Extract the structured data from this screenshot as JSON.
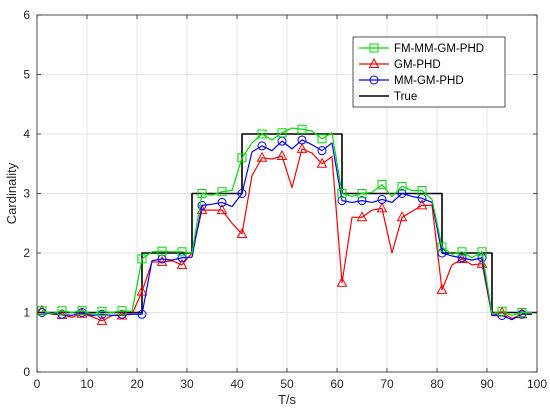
{
  "chart_data": {
    "type": "line",
    "xlabel": "T/s",
    "ylabel": "Cardinality",
    "xlim": [
      0,
      100
    ],
    "ylim": [
      0,
      6
    ],
    "xticks": [
      0,
      10,
      20,
      30,
      40,
      50,
      60,
      70,
      80,
      90,
      100
    ],
    "yticks": [
      0,
      1,
      2,
      3,
      4,
      5,
      6
    ],
    "grid": true,
    "legend_position": "top-right",
    "series": [
      {
        "name": "FM-MM-GM-PHD",
        "color": "#00dd00",
        "marker": "square",
        "x": [
          1,
          3,
          5,
          7,
          9,
          11,
          13,
          15,
          17,
          19,
          21,
          23,
          25,
          27,
          29,
          31,
          33,
          35,
          37,
          39,
          41,
          43,
          45,
          47,
          49,
          51,
          53,
          55,
          57,
          59,
          61,
          63,
          65,
          67,
          69,
          71,
          73,
          75,
          77,
          79,
          81,
          83,
          85,
          87,
          89,
          91,
          93,
          95,
          97,
          99
        ],
        "y": [
          1.03,
          0.98,
          1.03,
          1.0,
          1.03,
          0.97,
          1.02,
          1.0,
          1.03,
          1.02,
          1.9,
          2.02,
          2.03,
          2.02,
          2.02,
          2.0,
          3.0,
          2.97,
          3.03,
          3.05,
          3.6,
          3.85,
          4.0,
          3.9,
          4.02,
          4.1,
          4.08,
          4.05,
          3.92,
          4.02,
          3.0,
          2.95,
          3.0,
          3.02,
          3.15,
          2.95,
          3.12,
          3.05,
          3.05,
          2.9,
          2.1,
          1.98,
          2.02,
          1.92,
          2.02,
          0.98,
          1.02,
          0.95,
          1.0,
          1.0
        ]
      },
      {
        "name": "GM-PHD",
        "color": "#ff0000",
        "marker": "triangle",
        "x": [
          1,
          3,
          5,
          7,
          9,
          11,
          13,
          15,
          17,
          19,
          21,
          23,
          25,
          27,
          29,
          31,
          33,
          35,
          37,
          39,
          41,
          43,
          45,
          47,
          49,
          51,
          53,
          55,
          57,
          59,
          61,
          63,
          65,
          67,
          69,
          71,
          73,
          75,
          77,
          79,
          81,
          83,
          85,
          87,
          89,
          91,
          93,
          95,
          97,
          99
        ],
        "y": [
          1.03,
          0.97,
          0.96,
          0.92,
          0.98,
          0.93,
          0.86,
          0.95,
          0.95,
          0.97,
          1.35,
          1.85,
          1.85,
          1.87,
          1.8,
          2.0,
          2.72,
          2.72,
          2.72,
          2.5,
          2.32,
          3.3,
          3.6,
          3.58,
          3.63,
          3.1,
          3.75,
          3.68,
          3.5,
          3.62,
          1.5,
          2.6,
          2.6,
          2.72,
          2.75,
          2.0,
          2.6,
          2.7,
          2.8,
          2.8,
          1.38,
          1.8,
          1.9,
          1.8,
          1.82,
          0.95,
          1.0,
          0.9,
          0.97,
          0.97
        ]
      },
      {
        "name": "MM-GM-PHD",
        "color": "#0000ff",
        "marker": "circle",
        "x": [
          1,
          3,
          5,
          7,
          9,
          11,
          13,
          15,
          17,
          19,
          21,
          23,
          25,
          27,
          29,
          31,
          33,
          35,
          37,
          39,
          41,
          43,
          45,
          47,
          49,
          51,
          53,
          55,
          57,
          59,
          61,
          63,
          65,
          67,
          69,
          71,
          73,
          75,
          77,
          79,
          81,
          83,
          85,
          87,
          89,
          91,
          93,
          95,
          97,
          99
        ],
        "y": [
          1.0,
          0.98,
          0.97,
          0.95,
          1.0,
          0.95,
          0.97,
          0.95,
          0.97,
          0.97,
          0.97,
          1.87,
          1.9,
          1.88,
          1.92,
          1.93,
          2.8,
          2.82,
          2.85,
          2.78,
          3.0,
          3.7,
          3.8,
          3.72,
          3.88,
          3.75,
          3.9,
          3.82,
          3.72,
          3.85,
          2.88,
          2.85,
          2.88,
          2.85,
          2.9,
          2.85,
          3.0,
          2.95,
          2.92,
          2.85,
          2.0,
          1.95,
          1.92,
          1.88,
          1.92,
          0.95,
          0.95,
          0.88,
          0.97,
          0.97
        ]
      },
      {
        "name": "True",
        "color": "#000000",
        "marker": "none",
        "x": [
          0,
          21,
          21,
          31,
          31,
          41,
          41,
          61,
          61,
          81,
          81,
          91,
          91,
          100
        ],
        "y": [
          1,
          1,
          2,
          2,
          3,
          3,
          4,
          4,
          3,
          3,
          2,
          2,
          1,
          1
        ]
      }
    ]
  }
}
